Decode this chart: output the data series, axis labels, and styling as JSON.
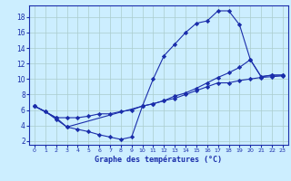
{
  "xlabel": "Graphe des températures (°C)",
  "bg_color": "#cceeff",
  "grid_color": "#aacccc",
  "line_color": "#1a2daa",
  "xlim": [
    -0.5,
    23.5
  ],
  "ylim": [
    1.5,
    19.5
  ],
  "yticks": [
    2,
    4,
    6,
    8,
    10,
    12,
    14,
    16,
    18
  ],
  "xticks": [
    0,
    1,
    2,
    3,
    4,
    5,
    6,
    7,
    8,
    9,
    10,
    11,
    12,
    13,
    14,
    15,
    16,
    17,
    18,
    19,
    20,
    21,
    22,
    23
  ],
  "line1_x": [
    0,
    1,
    2,
    3,
    4,
    5,
    6,
    7,
    8,
    9,
    10,
    11,
    12,
    13,
    14,
    15,
    16,
    17,
    18,
    19,
    20,
    21,
    22,
    23
  ],
  "line1_y": [
    6.5,
    5.8,
    4.8,
    3.8,
    3.5,
    3.2,
    2.8,
    2.5,
    2.2,
    2.5,
    6.5,
    10.0,
    13.0,
    14.5,
    16.0,
    17.2,
    17.5,
    18.8,
    18.8,
    17.0,
    12.5,
    10.3,
    10.5,
    10.5
  ],
  "line2_x": [
    0,
    1,
    2,
    3,
    4,
    5,
    6,
    7,
    8,
    9,
    10,
    11,
    12,
    13,
    14,
    15,
    16,
    17,
    18,
    19,
    20,
    21,
    22,
    23
  ],
  "line2_y": [
    6.5,
    5.8,
    5.0,
    5.0,
    5.0,
    5.2,
    5.5,
    5.5,
    5.8,
    6.0,
    6.5,
    6.8,
    7.2,
    7.5,
    8.0,
    8.5,
    9.0,
    9.5,
    9.5,
    9.8,
    10.0,
    10.2,
    10.3,
    10.4
  ],
  "line3_x": [
    0,
    2,
    3,
    10,
    11,
    12,
    13,
    14,
    15,
    16,
    17,
    18,
    19,
    20,
    21,
    22,
    23
  ],
  "line3_y": [
    6.5,
    5.0,
    3.8,
    6.5,
    6.8,
    7.2,
    7.8,
    8.2,
    8.8,
    9.5,
    10.2,
    10.8,
    11.5,
    12.5,
    10.3,
    10.5,
    10.5
  ]
}
